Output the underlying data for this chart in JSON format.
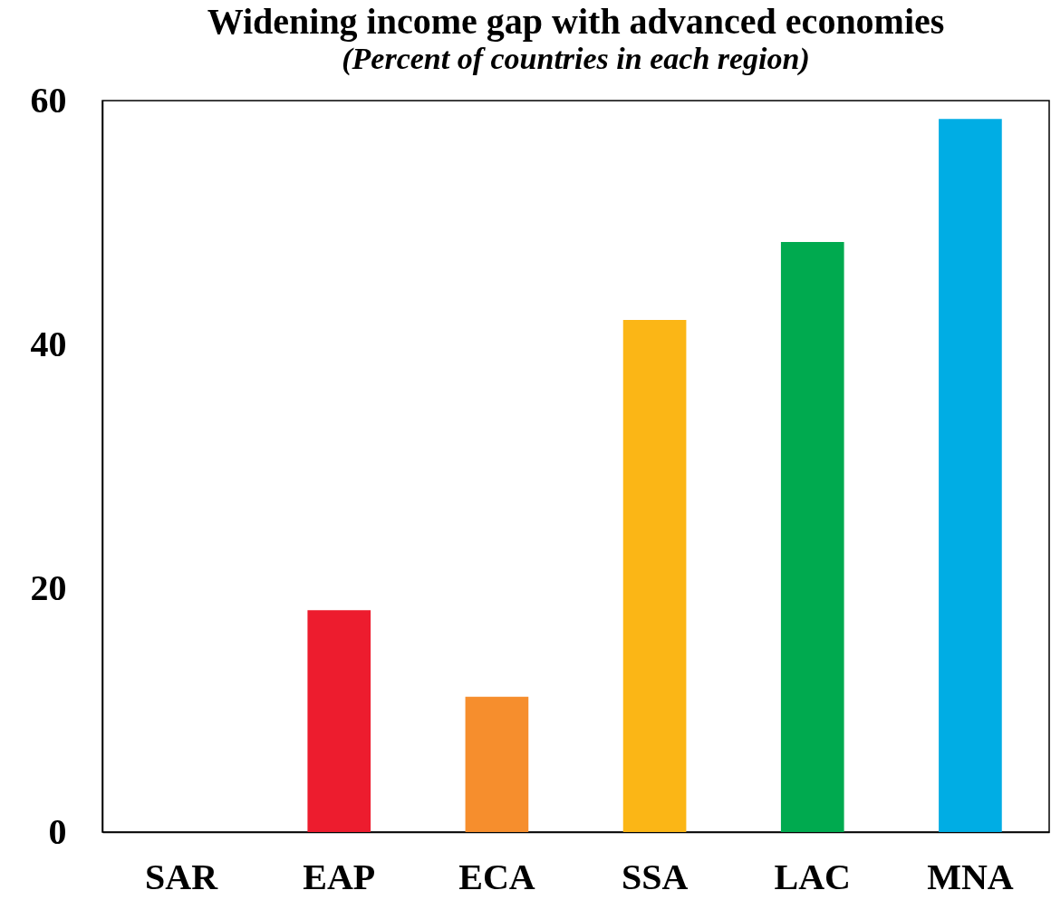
{
  "chart_data": {
    "type": "bar",
    "title": "Widening income gap with advanced economies",
    "subtitle": "(Percent of countries in each region)",
    "categories": [
      "SAR",
      "EAP",
      "ECA",
      "SSA",
      "LAC",
      "MNA"
    ],
    "values": [
      0,
      18.2,
      11.1,
      42.0,
      48.4,
      58.5
    ],
    "colors": [
      "#7f7f7f",
      "#ed1c2e",
      "#f68e2d",
      "#fbb616",
      "#00aa4f",
      "#00ade4"
    ],
    "ylim": [
      0,
      60
    ],
    "yticks": [
      0,
      20,
      40,
      60
    ],
    "grid": false,
    "legend": false
  }
}
